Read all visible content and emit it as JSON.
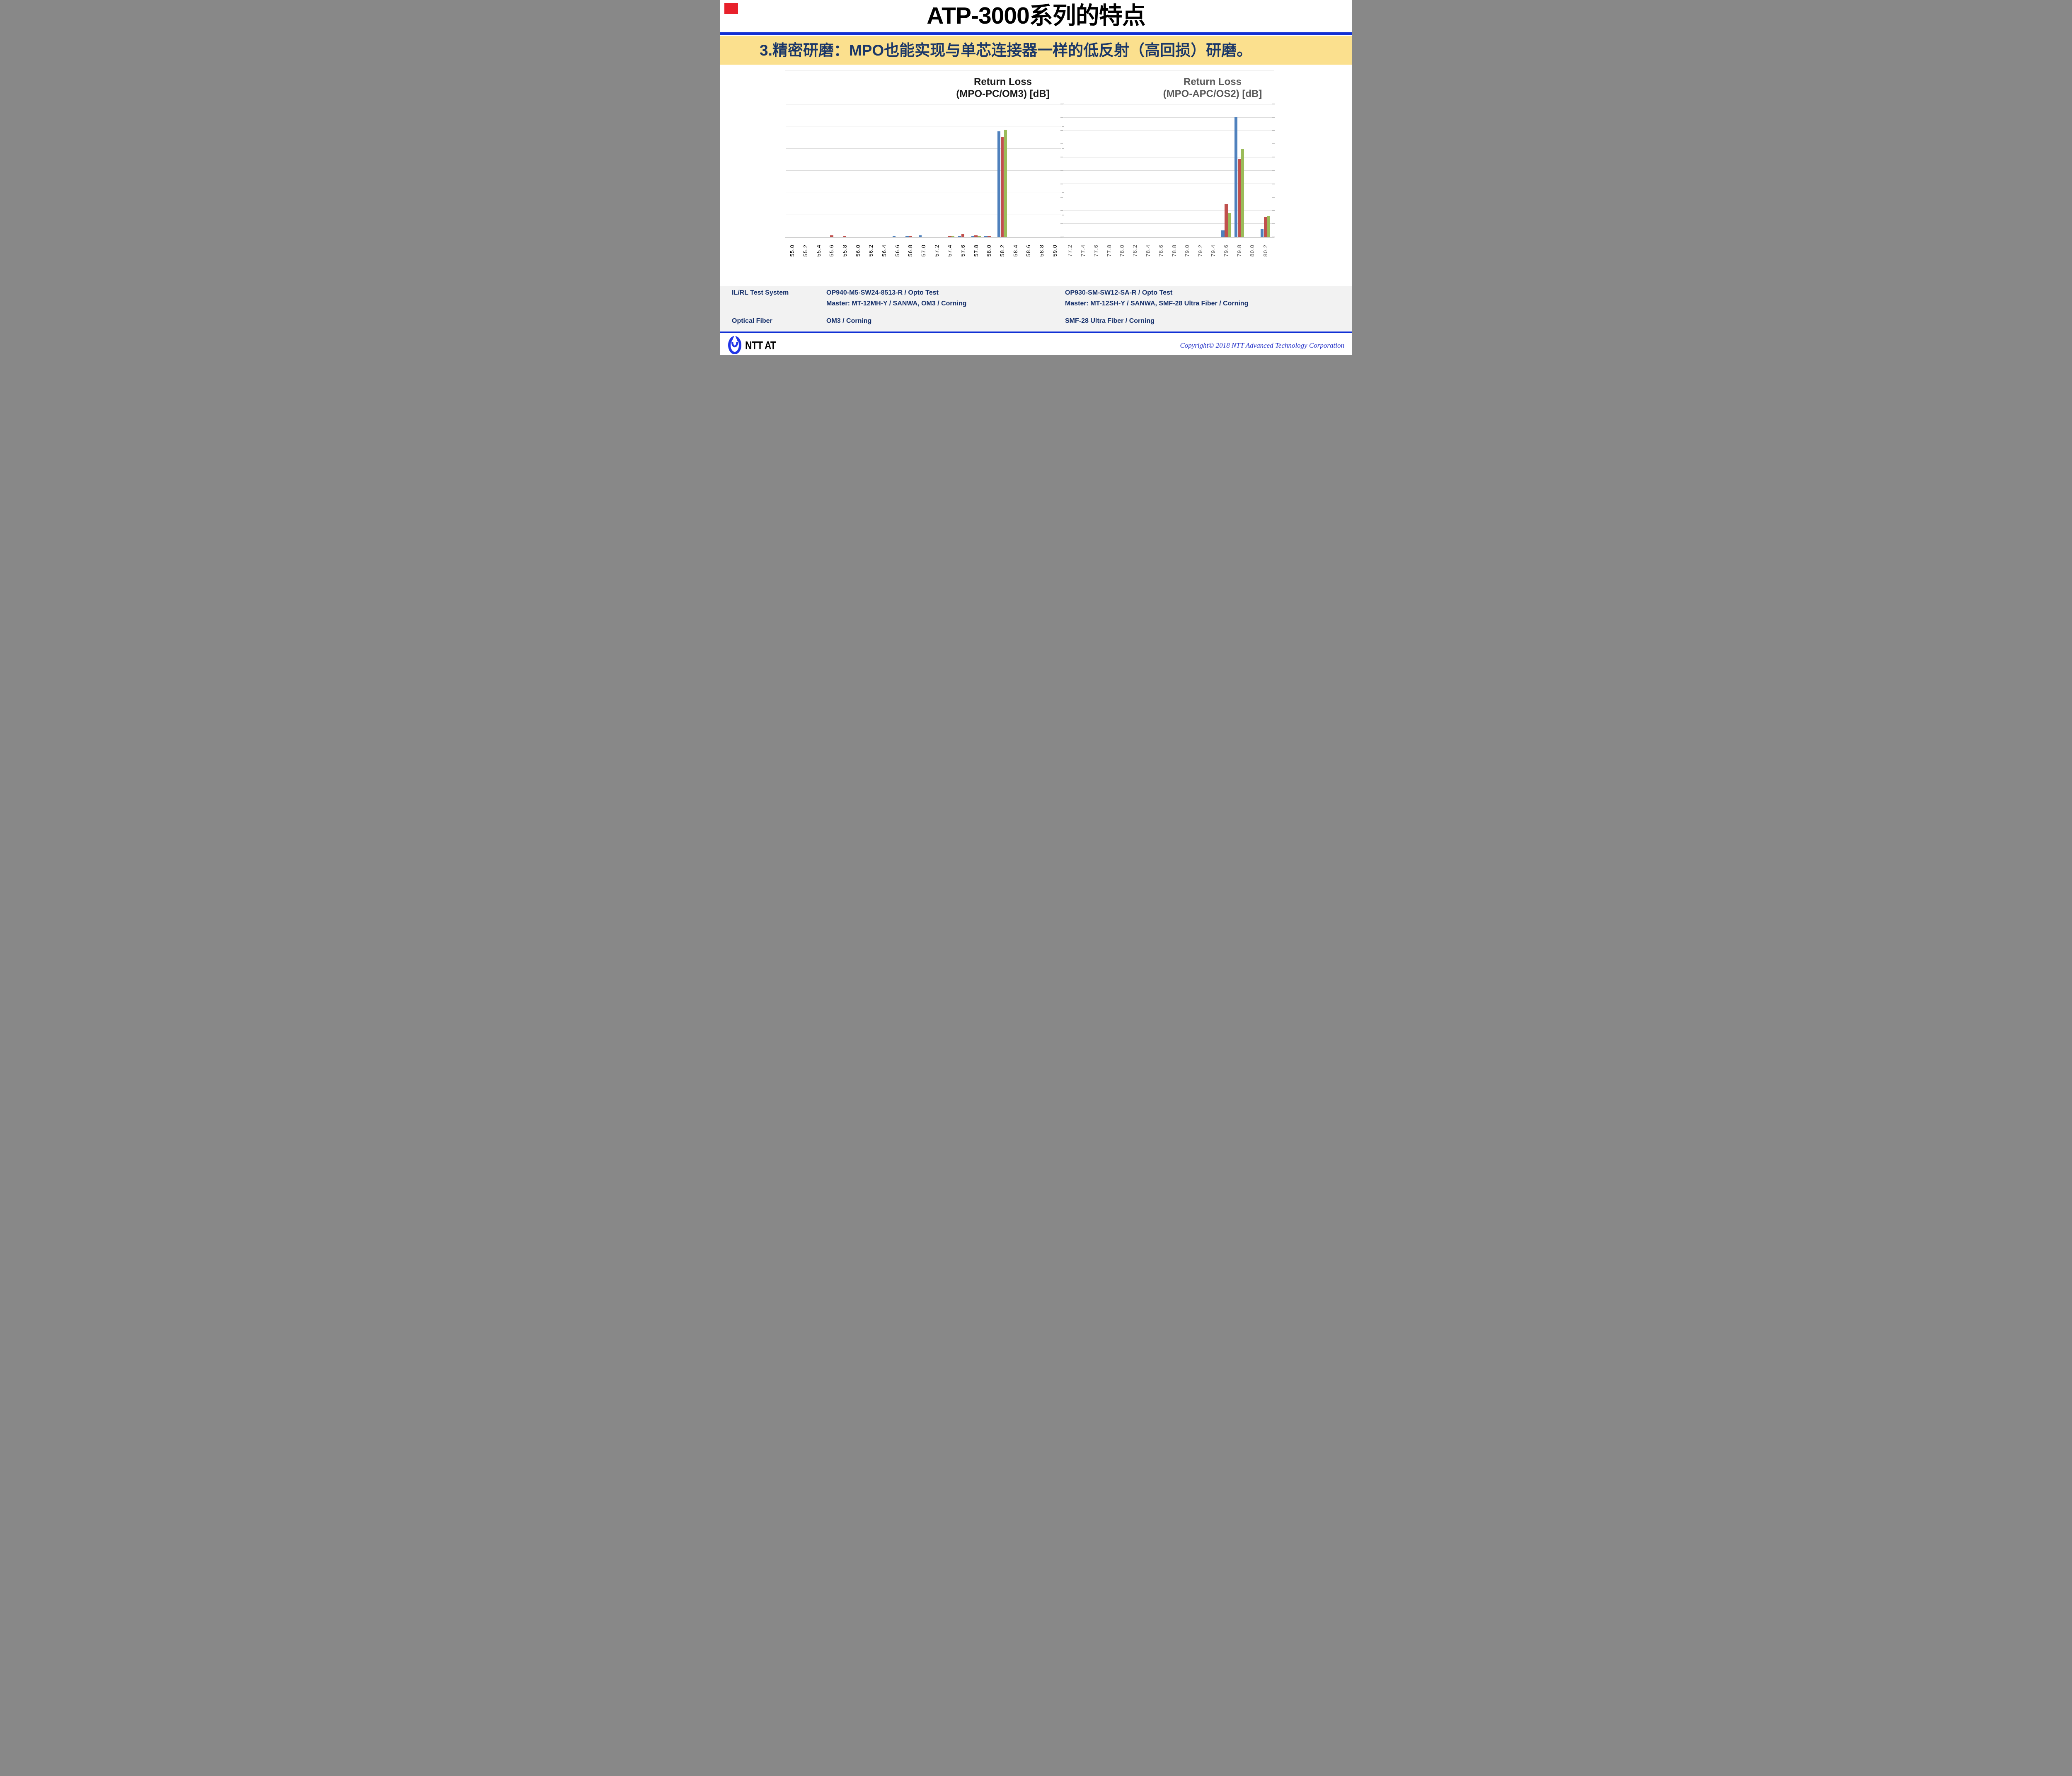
{
  "slide": {
    "title": "ATP-3000系列的特点",
    "banner_text": "3.精密研磨：MPO也能实现与单芯连接器一样的低反射（高回损）研磨。",
    "colors": {
      "divider_blue": "#1130d4",
      "banner_bg": "#FBE08E",
      "banner_text": "#1B3768",
      "navy_text": "#16306B",
      "table_bg": "#F2F2F2",
      "gridline": "#DCDCDC",
      "baseline": "#D0D0D0",
      "tick": "#BFBFBF",
      "copyright_blue": "#2432C8",
      "logo_blue": "#2135E6",
      "red_marker": "#E8212B"
    }
  },
  "chart_data": [
    {
      "type": "bar",
      "title_lines": [
        "Return Loss",
        "(MPO-PC/OM3) [dB]"
      ],
      "title_color": "#1A1A1A",
      "label_color": "#000000",
      "xlabel": "",
      "ylabel": "",
      "ylim": [
        0,
        180
      ],
      "gridline_step": 30,
      "grid": "on",
      "legend": "none",
      "categories": [
        "55.0",
        "55.2",
        "55.4",
        "55.6",
        "55.8",
        "56.0",
        "56.2",
        "56.4",
        "56.6",
        "56.8",
        "57.0",
        "57.2",
        "57.4",
        "57.6",
        "57.8",
        "58.0",
        "58.2",
        "58.4",
        "58.6",
        "58.8",
        "59.0"
      ],
      "series": [
        {
          "name": "series-1",
          "color": "#4F81BD",
          "values": [
            0,
            0,
            0,
            0,
            0,
            0,
            0,
            0,
            1,
            1,
            2,
            0,
            0,
            1,
            1,
            1,
            143,
            0,
            0,
            0,
            0
          ]
        },
        {
          "name": "series-2",
          "color": "#C0504D",
          "values": [
            0,
            0,
            0,
            2,
            1,
            0,
            0,
            0,
            0,
            1,
            0,
            0,
            1,
            4,
            2,
            1,
            135,
            0,
            0,
            0,
            0
          ]
        },
        {
          "name": "series-3",
          "color": "#9BBB59",
          "values": [
            0,
            0,
            0,
            0,
            0,
            0,
            0,
            0,
            0,
            0,
            0,
            0,
            1,
            0,
            1,
            0,
            145,
            0,
            0,
            0,
            0
          ]
        }
      ]
    },
    {
      "type": "bar",
      "title_lines": [
        "Return Loss",
        "(MPO-APC/OS2) [dB]"
      ],
      "title_color": "#595959",
      "label_color": "#595959",
      "xlabel": "",
      "ylabel": "",
      "ylim": [
        0,
        100
      ],
      "gridline_step": 10,
      "grid": "on",
      "legend": "none",
      "categories": [
        "77.2",
        "77.4",
        "77.6",
        "77.8",
        "78.0",
        "78.2",
        "78.4",
        "78.6",
        "78.8",
        "79.0",
        "79.2",
        "79.4",
        "79.6",
        "79.8",
        "80.0",
        "80.2"
      ],
      "series": [
        {
          "name": "series-1",
          "color": "#4F81BD",
          "values": [
            0,
            0,
            0,
            0,
            0,
            0,
            0,
            0,
            0,
            0,
            0,
            0,
            5,
            90,
            0,
            6
          ]
        },
        {
          "name": "series-2",
          "color": "#C0504D",
          "values": [
            0,
            0,
            0,
            0,
            0,
            0,
            0,
            0,
            0,
            0,
            0,
            0,
            25,
            59,
            0,
            15
          ]
        },
        {
          "name": "series-3",
          "color": "#9BBB59",
          "values": [
            0,
            0,
            0,
            0,
            0,
            0,
            0,
            0,
            0,
            0,
            0,
            0,
            18,
            66,
            0,
            16
          ]
        }
      ]
    }
  ],
  "table": {
    "rows": [
      {
        "label": "IL/RL Test System",
        "col2": [
          "OP940-M5-SW24-8513-R / Opto Test",
          "Master: MT-12MH-Y / SANWA, OM3 / Corning"
        ],
        "col3": [
          "OP930-SM-SW12-SA-R / Opto Test",
          "Master: MT-12SH-Y / SANWA, SMF-28 Ultra Fiber /  Corning"
        ]
      },
      {
        "label": "Optical Fiber",
        "col2": [
          "OM3 / Corning"
        ],
        "col3": [
          "SMF-28 Ultra Fiber / Corning"
        ]
      }
    ]
  },
  "footer": {
    "logo_text": "NTT AT",
    "copyright": "Copyright© 2018 NTT Advanced Technology Corporation"
  }
}
